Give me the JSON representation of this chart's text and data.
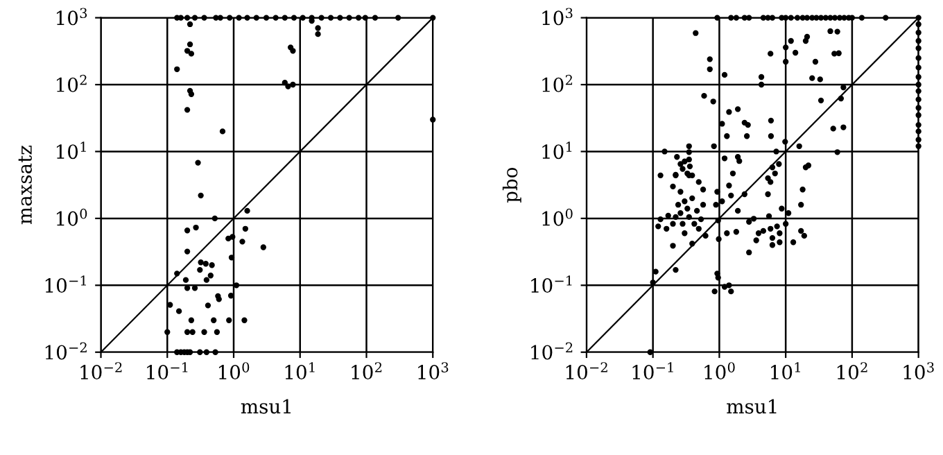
{
  "chart_data": [
    {
      "type": "scatter",
      "xlabel": "msu1",
      "ylabel": "maxsatz",
      "log": "xy",
      "grid": true,
      "marker": "circle",
      "xlim": [
        0.01,
        1000
      ],
      "ylim": [
        0.01,
        1000
      ],
      "xticks": [
        {
          "value": 0.01,
          "label": "10$^{−2}$"
        },
        {
          "value": 0.1,
          "label": "10$^{−1}$"
        },
        {
          "value": 1,
          "label": "10$^{0}$"
        },
        {
          "value": 10,
          "label": "10$^{1}$"
        },
        {
          "value": 100,
          "label": "10$^{2}$"
        },
        {
          "value": 1000,
          "label": "10$^{3}$"
        }
      ],
      "yticks": [
        {
          "value": 0.01,
          "label": "10$^{−2}$"
        },
        {
          "value": 0.1,
          "label": "10$^{−1}$"
        },
        {
          "value": 1,
          "label": "10$^{0}$"
        },
        {
          "value": 10,
          "label": "10$^{1}$"
        },
        {
          "value": 100,
          "label": "10$^{2}$"
        },
        {
          "value": 1000,
          "label": "10$^{3}$"
        }
      ],
      "series": [
        {
          "type": "scatter",
          "color": "#000000",
          "x": [
            0.14,
            0.16,
            0.2,
            0.26,
            0.36,
            0.54,
            0.63,
            0.87,
            1.2,
            1.6,
            2.2,
            3.1,
            4.3,
            5.9,
            8.1,
            11,
            15,
            21,
            29,
            40,
            55,
            76,
            96,
            135,
            300,
            1000
          ],
          "values": [
            1000,
            1000,
            1000,
            1000,
            1000,
            1000,
            1000,
            1000,
            1000,
            1000,
            1000,
            1000,
            1000,
            1000,
            1000,
            1000,
            1000,
            1000,
            1000,
            1000,
            1000,
            1000,
            1000,
            1000,
            1000,
            1000
          ]
        },
        {
          "type": "scatter",
          "color": "#000000",
          "x": [
            0.22,
            0.22,
            0.2,
            0.23,
            0.14,
            0.22,
            0.23,
            0.2,
            0.68,
            0.29,
            7.2,
            7.8,
            5.9,
            6.6,
            7.8,
            15,
            18.6,
            18.6,
            1000
          ],
          "values": [
            800,
            400,
            320,
            290,
            170,
            81,
            72,
            42,
            20,
            6.8,
            360,
            320,
            107,
            94,
            100,
            900,
            700,
            570,
            30
          ]
        },
        {
          "type": "scatter",
          "color": "#000000",
          "x": [
            0.32,
            0.52,
            1.6,
            0.2,
            0.27,
            0.83,
            0.96,
            1.5,
            1.35,
            2.8,
            0.2,
            0.93,
            0.32,
            0.38,
            0.47,
            0.31,
            0.45,
            0.39,
            0.14,
            0.19,
            0.2,
            0.26,
            1.1,
            0.58,
            0.6,
            0.91,
            0.11,
            0.15,
            0.41,
            0.23,
            0.5,
            0.85,
            1.45,
            0.1,
            0.2,
            0.24,
            0.36,
            0.56,
            0.14,
            0.16,
            0.18,
            0.2,
            0.22,
            0.31,
            0.39,
            0.53
          ],
          "values": [
            2.2,
            1.0,
            1.3,
            0.66,
            0.73,
            0.5,
            0.53,
            0.7,
            0.45,
            0.37,
            0.32,
            0.26,
            0.22,
            0.21,
            0.2,
            0.17,
            0.14,
            0.12,
            0.15,
            0.12,
            0.091,
            0.091,
            0.1,
            0.069,
            0.062,
            0.07,
            0.051,
            0.041,
            0.05,
            0.03,
            0.03,
            0.03,
            0.03,
            0.02,
            0.02,
            0.02,
            0.02,
            0.02,
            0.01,
            0.01,
            0.01,
            0.01,
            0.01,
            0.01,
            0.01,
            0.01
          ]
        },
        {
          "type": "line",
          "marker": "none",
          "color": "#000000",
          "x": [
            0.01,
            1000
          ],
          "values": [
            0.01,
            1000
          ]
        }
      ]
    },
    {
      "type": "scatter",
      "xlabel": "msu1",
      "ylabel": "pbo",
      "log": "xy",
      "grid": true,
      "marker": "circle",
      "xlim": [
        0.01,
        1000
      ],
      "ylim": [
        0.01,
        1000
      ],
      "xticks": [
        {
          "value": 0.01,
          "label": "10$^{−2}$"
        },
        {
          "value": 0.1,
          "label": "10$^{−1}$"
        },
        {
          "value": 1,
          "label": "10$^{0}$"
        },
        {
          "value": 10,
          "label": "10$^{1}$"
        },
        {
          "value": 100,
          "label": "10$^{2}$"
        },
        {
          "value": 1000,
          "label": "10$^{3}$"
        }
      ],
      "yticks": [
        {
          "value": 0.01,
          "label": "10$^{−2}$"
        },
        {
          "value": 0.1,
          "label": "10$^{−1}$"
        },
        {
          "value": 1,
          "label": "10$^{0}$"
        },
        {
          "value": 10,
          "label": "10$^{1}$"
        },
        {
          "value": 100,
          "label": "10$^{2}$"
        },
        {
          "value": 1000,
          "label": "10$^{3}$"
        }
      ],
      "series": [
        {
          "type": "scatter",
          "color": "#000000",
          "x": [
            0.93,
            1.5,
            1.8,
            2.4,
            2.8,
            4.6,
            5.4,
            6.3,
            8.7,
            10,
            12,
            15,
            18,
            21,
            25,
            29,
            34,
            40,
            47,
            55,
            65,
            76,
            89,
            100,
            140,
            320,
            1000
          ],
          "values": [
            1000,
            1000,
            1000,
            1000,
            1000,
            1000,
            1000,
            1000,
            1000,
            1000,
            1000,
            1000,
            1000,
            1000,
            1000,
            1000,
            1000,
            1000,
            1000,
            1000,
            1000,
            1000,
            1000,
            1000,
            1000,
            1000,
            1000
          ]
        },
        {
          "type": "scatter",
          "color": "#000000",
          "x": [
            1000,
            1000,
            1000,
            1000,
            1000,
            1000,
            1000,
            1000,
            1000,
            1000,
            1000,
            1000,
            1000,
            1000,
            1000,
            1000
          ],
          "values": [
            800,
            600,
            450,
            350,
            250,
            180,
            130,
            100,
            80,
            60,
            45,
            35,
            25,
            20,
            15,
            12
          ]
        },
        {
          "type": "scatter",
          "color": "#000000",
          "x": [
            0.44,
            0.72,
            0.72,
            1.2,
            0.59,
            0.81,
            1.4,
            1.9,
            1.1,
            2.4,
            2.7,
            1.3,
            2.6,
            0.83,
            6.0,
            6.0,
            9.8,
            16,
            5.9,
            10,
            12,
            14,
            10,
            21,
            20,
            4.3,
            4.3,
            28,
            25,
            33,
            47,
            60,
            54,
            63,
            74,
            68,
            34,
            52,
            74,
            60,
            7.2,
            6.3,
            7.9,
            5.4,
            6.9,
            22,
            20,
            1.6,
            1.2,
            1.9,
            2.0,
            0.15,
            0.35,
            0.35,
            0.35,
            0.36,
            0.33,
            0.23,
            0.26,
            0.28,
            0.22,
            0.39,
            0.3
          ],
          "values": [
            590,
            240,
            170,
            140,
            68,
            56,
            39,
            43,
            26,
            27,
            25,
            17,
            17,
            12,
            29,
            17,
            14,
            12,
            290,
            360,
            450,
            300,
            220,
            520,
            450,
            130,
            100,
            220,
            125,
            120,
            630,
            620,
            290,
            295,
            91,
            62,
            58,
            22,
            23,
            9.8,
            10,
            5.8,
            6.5,
            4.0,
            4.7,
            6.2,
            5.8,
            4.7,
            7.9,
            8.3,
            7.2,
            10,
            12,
            9.8,
            7.6,
            6.0,
            4.7,
            8.3,
            6.5,
            5.5,
            4.5,
            4.4,
            7.1
          ]
        },
        {
          "type": "scatter",
          "color": "#000000",
          "x": [
            0.13,
            0.22,
            0.35,
            0.26,
            0.2,
            0.3,
            0.39,
            0.24,
            0.33,
            0.26,
            0.17,
            0.13,
            0.12,
            0.16,
            0.2,
            0.28,
            0.22,
            0.35,
            0.42,
            0.3,
            0.49,
            0.53,
            0.46,
            0.57,
            0.57,
            0.49,
            0.2,
            0.39,
            0.62,
            0.96,
            0.89,
            1.1,
            0.93,
            1.5,
            2.4,
            1.9,
            1.3,
            1.8,
            0.98,
            1.4,
            2.8,
            3.3,
            2.8,
            3.6,
            3.9,
            4.6,
            5.9,
            6.3,
            8.1,
            6.3,
            8.1,
            5.6,
            8.7,
            11,
            17,
            18,
            17,
            19,
            13,
            7.4,
            10,
            5.4,
            5.9,
            0.11,
            0.22,
            0.1,
            0.93,
            0.96,
            0.85,
            1.4,
            1.5,
            1.2,
            0.091
          ],
          "values": [
            4.4,
            4.4,
            4.4,
            2.5,
            3.0,
            1.8,
            2.0,
            1.6,
            1.4,
            1.2,
            1.1,
            0.97,
            0.76,
            0.7,
            0.83,
            0.83,
            1.05,
            1.05,
            0.83,
            0.6,
            0.7,
            0.97,
            1.3,
            1.6,
            2.7,
            3.5,
            0.39,
            0.42,
            0.55,
            0.93,
            1.6,
            1.8,
            2.5,
            2.2,
            2.3,
            1.3,
            0.6,
            0.63,
            0.49,
            3.1,
            0.89,
            0.99,
            0.31,
            0.47,
            0.6,
            0.65,
            0.7,
            0.51,
            0.6,
            0.4,
            0.44,
            1.08,
            1.4,
            1.2,
            1.6,
            2.7,
            0.65,
            0.55,
            0.44,
            0.76,
            0.83,
            2.3,
            3.5,
            0.16,
            0.17,
            0.11,
            0.15,
            0.13,
            0.081,
            0.1,
            0.081,
            0.095,
            0.01
          ]
        },
        {
          "type": "line",
          "marker": "none",
          "color": "#000000",
          "x": [
            0.01,
            1000
          ],
          "values": [
            0.01,
            1000
          ]
        }
      ]
    }
  ]
}
